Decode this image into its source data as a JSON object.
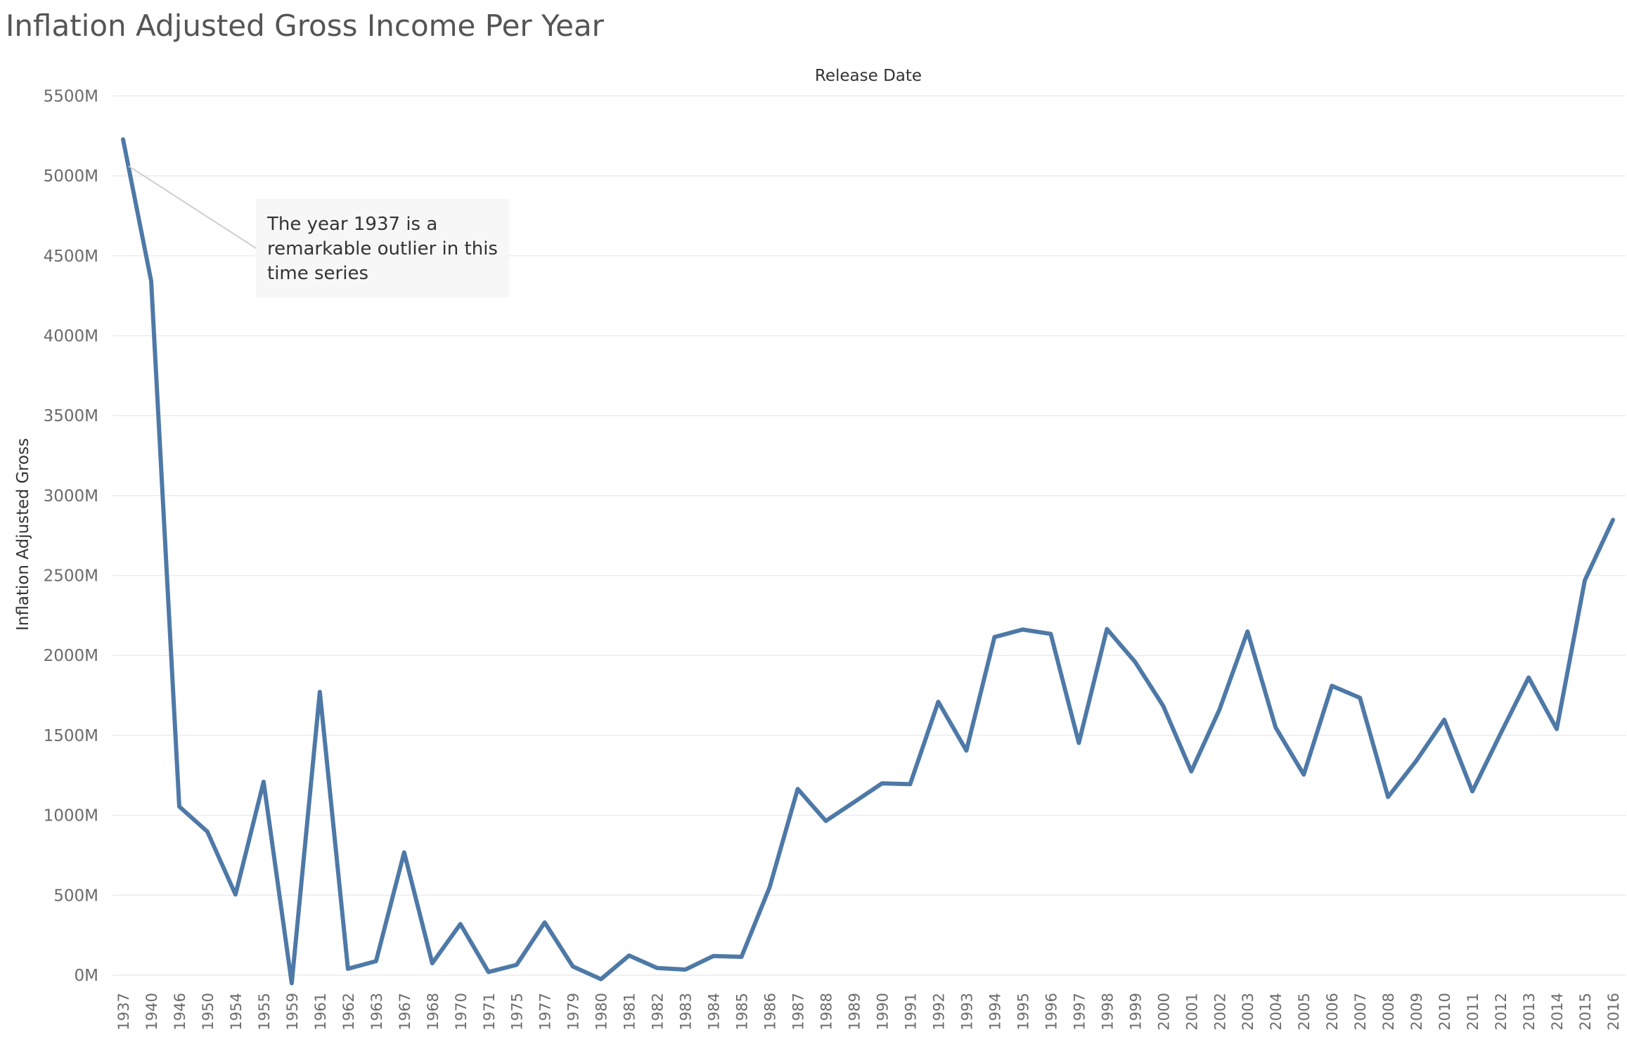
{
  "title": "Inflation Adjusted Gross Income Per Year",
  "chart_data": {
    "type": "line",
    "xlabel": "Release Date",
    "ylabel": "Inflation Adjusted Gross",
    "ylim": [
      -50,
      5550
    ],
    "yticks": [
      {
        "value": 0,
        "label": "0M"
      },
      {
        "value": 500,
        "label": "500M"
      },
      {
        "value": 1000,
        "label": "1000M"
      },
      {
        "value": 1500,
        "label": "1500M"
      },
      {
        "value": 2000,
        "label": "2000M"
      },
      {
        "value": 2500,
        "label": "2500M"
      },
      {
        "value": 3000,
        "label": "3000M"
      },
      {
        "value": 3500,
        "label": "3500M"
      },
      {
        "value": 4000,
        "label": "4000M"
      },
      {
        "value": 4500,
        "label": "4500M"
      },
      {
        "value": 5000,
        "label": "5000M"
      },
      {
        "value": 5500,
        "label": "5500M"
      }
    ],
    "categories": [
      "1937",
      "1940",
      "1946",
      "1950",
      "1954",
      "1955",
      "1959",
      "1961",
      "1962",
      "1963",
      "1967",
      "1968",
      "1970",
      "1971",
      "1975",
      "1977",
      "1979",
      "1980",
      "1981",
      "1982",
      "1983",
      "1984",
      "1985",
      "1986",
      "1987",
      "1988",
      "1989",
      "1990",
      "1991",
      "1992",
      "1993",
      "1994",
      "1995",
      "1996",
      "1997",
      "1998",
      "1999",
      "2000",
      "2001",
      "2002",
      "2003",
      "2004",
      "2005",
      "2006",
      "2007",
      "2008",
      "2009",
      "2010",
      "2011",
      "2012",
      "2013",
      "2014",
      "2015",
      "2016"
    ],
    "series": [
      {
        "color": "#4e79a7",
        "values": [
          5228,
          4342,
          1055,
          898,
          505,
          1210,
          -50,
          1772,
          40,
          88,
          768,
          75,
          320,
          20,
          65,
          330,
          55,
          -25,
          123,
          45,
          35,
          120,
          115,
          550,
          1165,
          965,
          1082,
          1200,
          1195,
          1710,
          1405,
          2115,
          2162,
          2135,
          1453,
          2165,
          1960,
          1685,
          1275,
          1660,
          2150,
          1550,
          1255,
          1810,
          1735,
          1115,
          1340,
          1598,
          1150,
          1510,
          1862,
          1540,
          2470,
          2848
        ]
      }
    ],
    "annotation": {
      "category": "1937",
      "lines": [
        "The year 1937 is a",
        "remarkable outlier in this",
        "time series"
      ]
    },
    "grid": "horizontal",
    "legend": "none"
  }
}
